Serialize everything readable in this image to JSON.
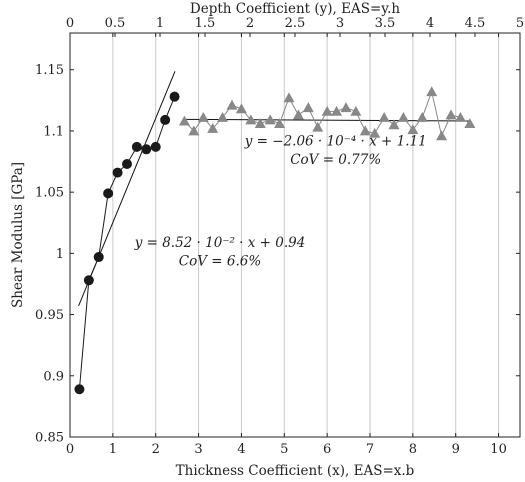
{
  "chart_data": {
    "type": "scatter",
    "xlabel": "Thickness Coefficient (x), EAS=x.b",
    "x2label": "Depth Coefficient (y), EAS=y.h",
    "ylabel": "Shear Modulus [GPa]",
    "xlim": [
      0,
      10.5
    ],
    "x2lim": [
      0,
      5
    ],
    "ylim": [
      0.85,
      1.18
    ],
    "xticks": [
      0,
      1,
      2,
      3,
      4,
      5,
      6,
      7,
      8,
      9,
      10
    ],
    "x2ticks": [
      0,
      0.5,
      1,
      1.5,
      2,
      2.5,
      3,
      3.5,
      4,
      4.5,
      5
    ],
    "yticks": [
      0.85,
      0.9,
      0.95,
      1,
      1.05,
      1.1,
      1.15
    ],
    "grid": "vertical",
    "series": [
      {
        "marker": "circle",
        "color": "#1a1a1a",
        "x": [
          0.22,
          0.44,
          0.67,
          0.89,
          1.11,
          1.33,
          1.56,
          1.78,
          2.0,
          2.22,
          2.44
        ],
        "y": [
          0.889,
          0.978,
          0.997,
          1.049,
          1.066,
          1.073,
          1.087,
          1.085,
          1.087,
          1.109,
          1.128
        ]
      },
      {
        "marker": "triangle",
        "color": "#888888",
        "x": [
          2.67,
          2.89,
          3.11,
          3.33,
          3.56,
          3.78,
          4.0,
          4.22,
          4.44,
          4.67,
          4.89,
          5.11,
          5.33,
          5.56,
          5.78,
          6.0,
          6.22,
          6.44,
          6.67,
          6.89,
          7.11,
          7.33,
          7.56,
          7.78,
          8.0,
          8.22,
          8.44,
          8.67,
          8.89,
          9.11,
          9.33
        ],
        "y": [
          1.108,
          1.1,
          1.111,
          1.102,
          1.111,
          1.121,
          1.118,
          1.109,
          1.106,
          1.109,
          1.106,
          1.127,
          1.113,
          1.119,
          1.103,
          1.116,
          1.116,
          1.119,
          1.116,
          1.1,
          1.098,
          1.111,
          1.105,
          1.111,
          1.101,
          1.111,
          1.132,
          1.096,
          1.113,
          1.111,
          1.106
        ]
      }
    ],
    "fits": [
      {
        "slope": 0.0852,
        "intercept": 0.94,
        "x_range": [
          0.2,
          2.45
        ]
      },
      {
        "slope": -0.000206,
        "intercept": 1.11,
        "x_range": [
          2.7,
          9.35
        ]
      }
    ],
    "annotations": [
      {
        "text": "y  =  8.52 · 10⁻² · x + 0.94",
        "x": 3.5,
        "y": 1.005
      },
      {
        "text": "CoV   =   6.6%",
        "x": 3.5,
        "y": 0.99
      },
      {
        "text": "y  =  −2.06 · 10⁻⁴ · x + 1.11",
        "x": 6.2,
        "y": 1.088
      },
      {
        "text": "CoV   =   0.77%",
        "x": 6.2,
        "y": 1.073
      }
    ]
  }
}
